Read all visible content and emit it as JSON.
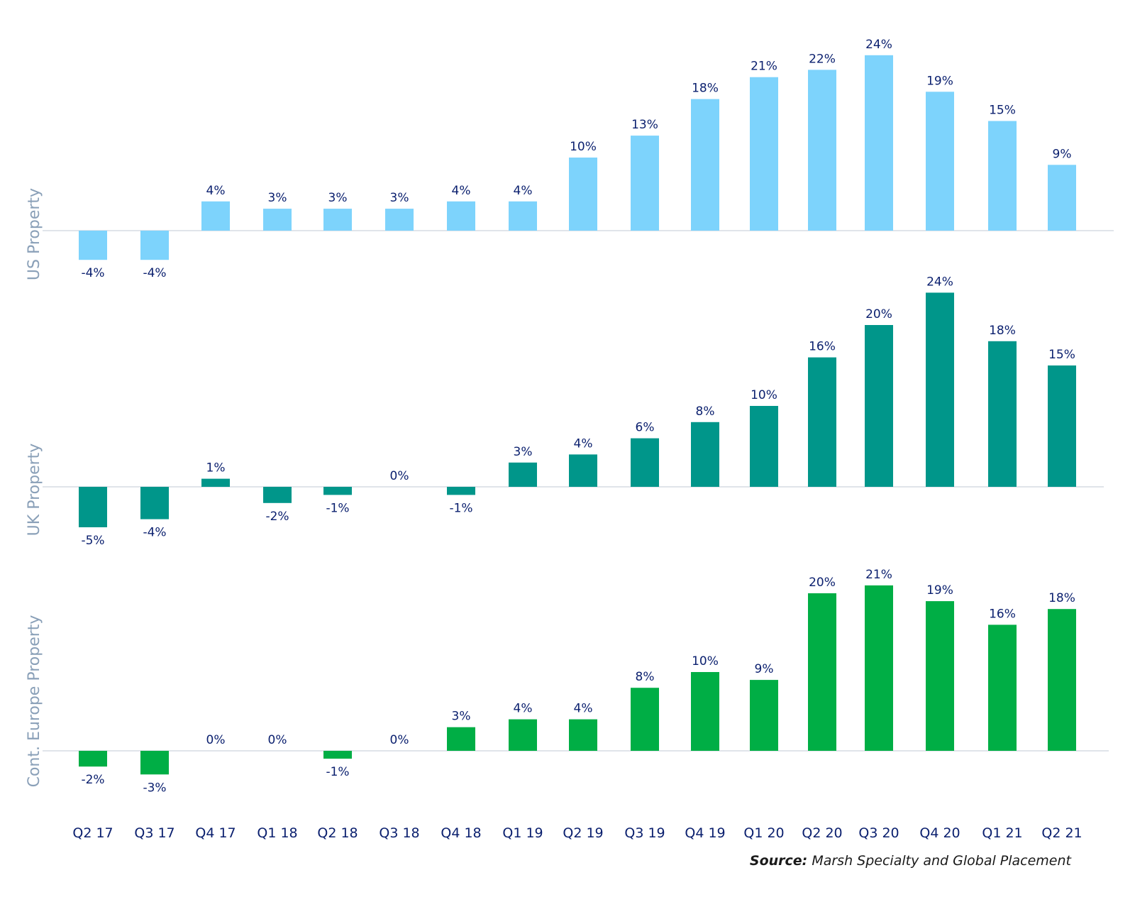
{
  "chart_data": {
    "type": "bar",
    "categories": [
      "Q2 17",
      "Q3 17",
      "Q4 17",
      "Q1 18",
      "Q2 18",
      "Q3 18",
      "Q4 18",
      "Q1 19",
      "Q2 19",
      "Q3 19",
      "Q4 19",
      "Q1 20",
      "Q2 20",
      "Q3 20",
      "Q4 20",
      "Q1 21",
      "Q2 21"
    ],
    "panels": [
      {
        "name": "US Property",
        "color": "#7dd3fc",
        "values": [
          -4,
          -4,
          4,
          3,
          3,
          3,
          4,
          4,
          10,
          13,
          18,
          21,
          22,
          24,
          19,
          15,
          9
        ],
        "labels": [
          "-4%",
          "-4%",
          "4%",
          "3%",
          "3%",
          "3%",
          "4%",
          "4%",
          "10%",
          "13%",
          "18%",
          "21%",
          "22%",
          "24%",
          "19%",
          "15%",
          "9%"
        ]
      },
      {
        "name": "UK Property",
        "color": "#00968a",
        "values": [
          -5,
          -4,
          1,
          -2,
          -1,
          0,
          -1,
          3,
          4,
          6,
          8,
          10,
          16,
          20,
          24,
          18,
          15
        ],
        "labels": [
          "-5%",
          "-4%",
          "1%",
          "-2%",
          "-1%",
          "0%",
          "-1%",
          "3%",
          "4%",
          "6%",
          "8%",
          "10%",
          "16%",
          "20%",
          "24%",
          "18%",
          "15%"
        ]
      },
      {
        "name": "Cont. Europe Property",
        "color": "#00ae45",
        "values": [
          -2,
          -3,
          0,
          0,
          -1,
          0,
          3,
          4,
          4,
          8,
          10,
          9,
          20,
          21,
          19,
          16,
          18
        ],
        "labels": [
          "-2%",
          "-3%",
          "0%",
          "0%",
          "-1%",
          "0%",
          "3%",
          "4%",
          "4%",
          "8%",
          "10%",
          "9%",
          "20%",
          "21%",
          "19%",
          "16%",
          "18%"
        ]
      }
    ],
    "source_label": "Source:",
    "source_text": "Marsh Specialty and Global Placement"
  }
}
